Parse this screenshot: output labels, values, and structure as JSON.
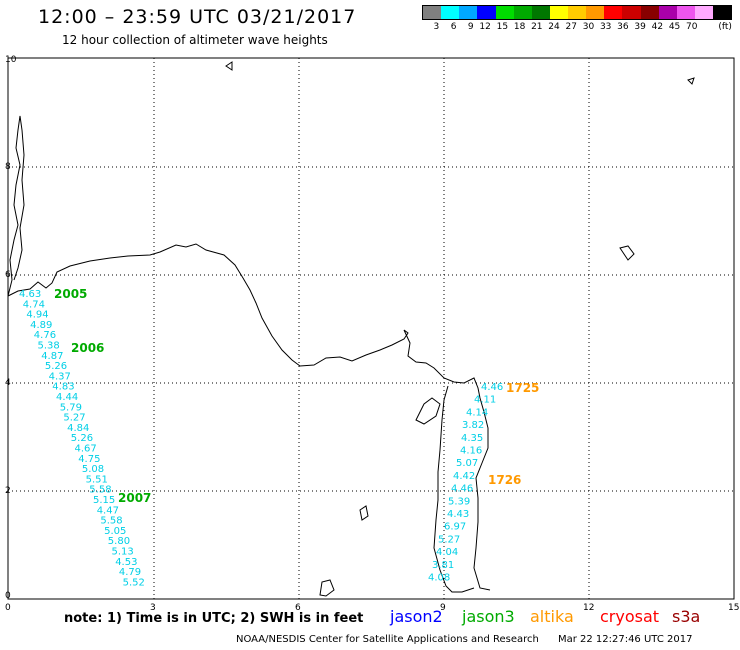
{
  "header": {
    "title": "12:00 – 23:59 UTC 03/21/2017",
    "subtitle": "12 hour collection of altimeter wave heights"
  },
  "legend": {
    "unit": "(ft)",
    "bins": [
      {
        "label": "3",
        "color": "#808080"
      },
      {
        "label": "6",
        "color": "#00ffff"
      },
      {
        "label": "9",
        "color": "#00a8ff"
      },
      {
        "label": "12",
        "color": "#0000ff"
      },
      {
        "label": "15",
        "color": "#00dd00"
      },
      {
        "label": "18",
        "color": "#00aa00"
      },
      {
        "label": "21",
        "color": "#007700"
      },
      {
        "label": "24",
        "color": "#ffff00"
      },
      {
        "label": "27",
        "color": "#ffcc00"
      },
      {
        "label": "30",
        "color": "#ff9900"
      },
      {
        "label": "33",
        "color": "#ff0000"
      },
      {
        "label": "36",
        "color": "#cc0000"
      },
      {
        "label": "39",
        "color": "#880000"
      },
      {
        "label": "42",
        "color": "#aa00aa"
      },
      {
        "label": "45",
        "color": "#ee55ee"
      },
      {
        "label": "70",
        "color": "#ffaaff"
      },
      {
        "label": "",
        "color": "#000000"
      }
    ]
  },
  "axes": {
    "x_ticks": [
      "0",
      "3",
      "6",
      "9",
      "12",
      "15"
    ],
    "y_ticks": [
      "0",
      "2",
      "4",
      "6",
      "8",
      "10"
    ]
  },
  "tracks": [
    {
      "satellite": "jason3",
      "color": "#00aa00",
      "pass_labels": [
        "2005",
        "2006",
        "2007"
      ],
      "swh_values": [
        "4.63",
        "4.74",
        "4.94",
        "4.89",
        "4.76",
        "5.38",
        "4.87",
        "5.26",
        "4.37",
        "4.83",
        "4.44",
        "5.79",
        "5.27",
        "4.84",
        "5.26",
        "4.67",
        "4.75",
        "5.08",
        "5.51",
        "5.58",
        "5.15",
        "4.47",
        "5.58",
        "5.05",
        "5.80",
        "5.13",
        "4.53",
        "4.79",
        "5.52"
      ]
    },
    {
      "satellite": "altika",
      "color": "#ff9900",
      "pass_labels": [
        "1725",
        "1726"
      ],
      "swh_values": [
        "4.46",
        "4.11",
        "4.14",
        "3.82",
        "4.35",
        "4.16",
        "5.07",
        "4.42",
        "4.46",
        "5.39",
        "4.43",
        "6.97",
        "5.27",
        "4.04",
        "3.81",
        "4.08"
      ]
    }
  ],
  "footer": {
    "note": "note: 1) Time is in UTC; 2) SWH is in feet",
    "satellites": [
      {
        "name": "jason2",
        "color": "#0000ff"
      },
      {
        "name": "jason3",
        "color": "#00aa00"
      },
      {
        "name": "altika",
        "color": "#ff9900"
      },
      {
        "name": "cryosat",
        "color": "#ff0000"
      },
      {
        "name": "s3a",
        "color": "#990000"
      }
    ],
    "credit": "NOAA/NESDIS Center for Satellite Applications and Research",
    "timestamp": "Mar 22 12:27:46 UTC 2017"
  }
}
